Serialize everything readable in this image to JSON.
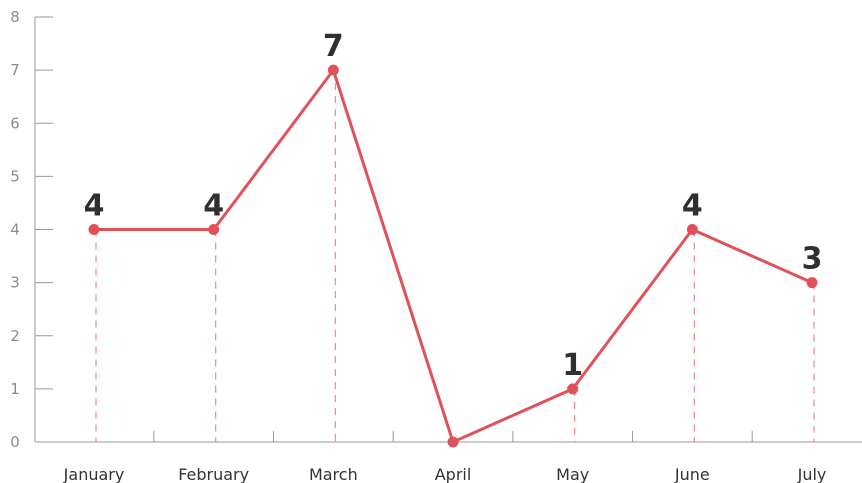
{
  "chart_data": {
    "type": "line",
    "categories": [
      "January",
      "February",
      "March",
      "April",
      "May",
      "June",
      "July"
    ],
    "series": [
      {
        "values": [
          4,
          4,
          7,
          0,
          1,
          4,
          3
        ]
      }
    ],
    "data_labels": [
      "4",
      "4",
      "7",
      "",
      "1",
      "4",
      "3"
    ],
    "y_ticks": [
      "0",
      "1",
      "2",
      "3",
      "4",
      "5",
      "6",
      "7",
      "8"
    ],
    "ylim": [
      0,
      8
    ],
    "title": "",
    "xlabel": "",
    "ylabel": "",
    "grid": false,
    "legend": "none",
    "colors": {
      "line": "#e0525a",
      "drop_line": "#ec8a8f",
      "axis": "#9a9a9a",
      "tick_text": "#8c8c8c",
      "category_text": "#333333",
      "label_text": "#2f2f2f"
    }
  }
}
